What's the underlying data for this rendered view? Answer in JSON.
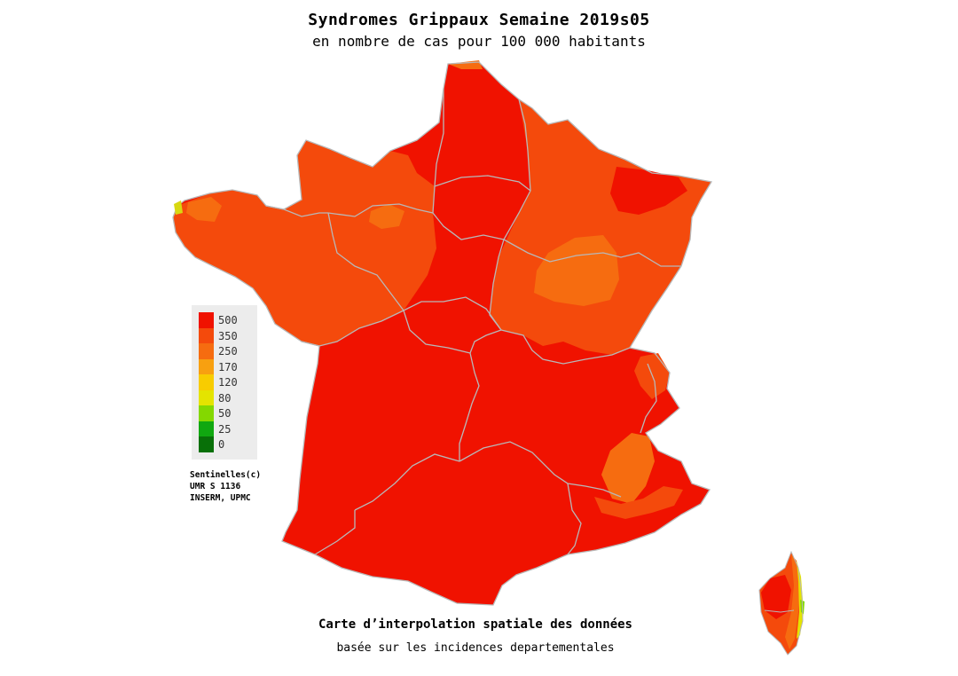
{
  "header": {
    "title": "Syndromes Grippaux Semaine 2019s05",
    "subtitle": "en nombre de cas pour 100 000 habitants"
  },
  "legend": {
    "items": [
      {
        "label": "500",
        "color": "#f01200"
      },
      {
        "label": "350",
        "color": "#f44a0c"
      },
      {
        "label": "250",
        "color": "#f66c10"
      },
      {
        "label": "170",
        "color": "#f8a010"
      },
      {
        "label": "120",
        "color": "#f8cc00"
      },
      {
        "label": "80",
        "color": "#e4e400"
      },
      {
        "label": "50",
        "color": "#84d800"
      },
      {
        "label": "25",
        "color": "#10a810"
      },
      {
        "label": "0",
        "color": "#087008"
      }
    ]
  },
  "credits": {
    "line1": "Sentinelles(c)",
    "line2": "UMR S 1136",
    "line3": "INSERM, UPMC"
  },
  "footer": {
    "caption": "Carte d’interpolation spatiale des données",
    "subcaption": "basée sur les incidences departementales"
  },
  "map": {
    "colors": {
      "base": "#f01200",
      "high": "#f44a0c",
      "mid": "#f66c10",
      "border": "#b8b8b8"
    }
  }
}
